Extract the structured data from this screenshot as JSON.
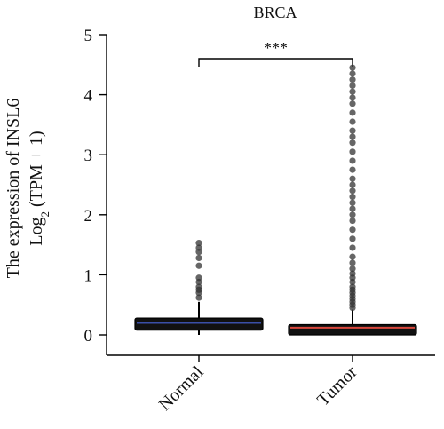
{
  "chart_data": {
    "type": "box",
    "title": "BRCA",
    "ylabel_line1": "The expression of INSL6",
    "ylabel_line2_prefix": "Log",
    "ylabel_line2_sub": "2",
    "ylabel_line2_suffix": " (TPM + 1)",
    "ylim": [
      0,
      5
    ],
    "yticks": [
      "0",
      "1",
      "2",
      "3",
      "4",
      "5"
    ],
    "categories": [
      "Normal",
      "Tumor"
    ],
    "significance": "***",
    "colors": {
      "Normal": "#3a4fa8",
      "Tumor": "#d9473c",
      "box_fill": "#111111",
      "outlier": "#333333"
    },
    "boxes": [
      {
        "name": "Normal",
        "q1": 0.08,
        "median": 0.2,
        "q3": 0.28,
        "whisker_low": 0.0,
        "whisker_high": 0.55,
        "outliers": [
          0.62,
          0.7,
          0.75,
          0.8,
          0.88,
          0.95,
          1.15,
          1.28,
          1.38,
          1.45,
          1.53
        ]
      },
      {
        "name": "Tumor",
        "q1": 0.0,
        "median": 0.12,
        "q3": 0.17,
        "whisker_low": 0.0,
        "whisker_high": 0.42,
        "outliers": [
          0.45,
          0.5,
          0.55,
          0.6,
          0.65,
          0.7,
          0.75,
          0.8,
          0.88,
          0.95,
          1.02,
          1.1,
          1.2,
          1.3,
          1.45,
          1.6,
          1.75,
          1.9,
          2.0,
          2.1,
          2.2,
          2.3,
          2.4,
          2.5,
          2.6,
          2.75,
          2.9,
          3.05,
          3.2,
          3.3,
          3.4,
          3.55,
          3.7,
          3.85,
          3.95,
          4.05,
          4.15,
          4.25,
          4.35,
          4.45
        ]
      }
    ]
  }
}
